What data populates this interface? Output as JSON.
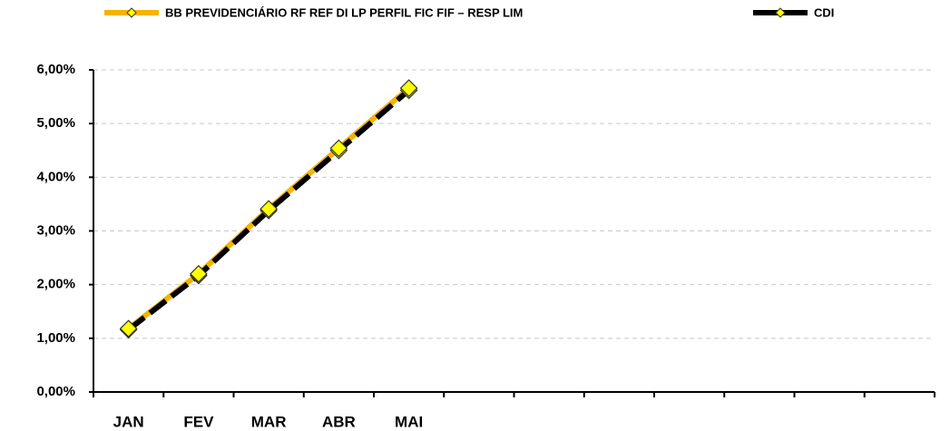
{
  "chart_data": {
    "type": "line",
    "categories": [
      "JAN",
      "FEV",
      "MAR",
      "ABR",
      "MAI",
      null,
      null,
      null,
      null,
      null,
      null,
      null
    ],
    "series": [
      {
        "name": "BB PREVIDENCIÁRIO RF REF DI LP PERFIL FIC FIF – RESP LIM",
        "color": "#f5b400",
        "marker_color": "#ffff00",
        "values": [
          1.18,
          2.2,
          3.41,
          4.54,
          5.66,
          null,
          null,
          null,
          null,
          null,
          null,
          null
        ]
      },
      {
        "name": "CDI",
        "color": "#000000",
        "marker_color": "#ffff00",
        "values": [
          1.16,
          2.17,
          3.38,
          4.5,
          5.62,
          null,
          null,
          null,
          null,
          null,
          null,
          null
        ]
      }
    ],
    "ylim": [
      0,
      6
    ],
    "yticks": [
      {
        "value": 0,
        "label": "0,00%"
      },
      {
        "value": 1,
        "label": "1,00%"
      },
      {
        "value": 2,
        "label": "2,00%"
      },
      {
        "value": 3,
        "label": "3,00%"
      },
      {
        "value": 4,
        "label": "4,00%"
      },
      {
        "value": 5,
        "label": "5,00%"
      },
      {
        "value": 6,
        "label": "6,00%"
      }
    ],
    "grid": true,
    "legend": "top"
  }
}
